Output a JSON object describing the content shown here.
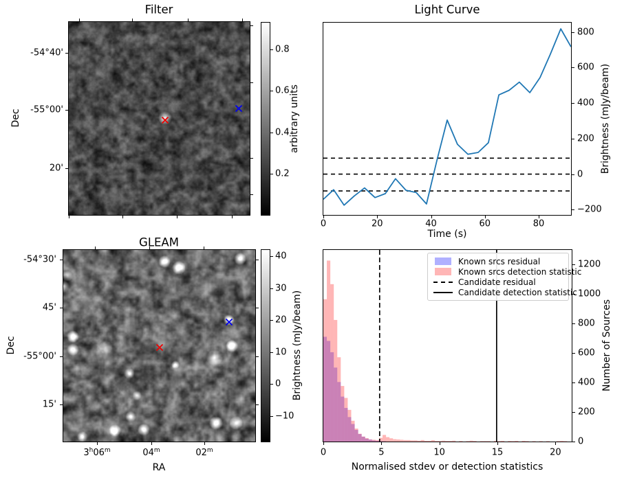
{
  "chart_data": [
    {
      "id": "filter",
      "type": "heatmap",
      "title": "Filter",
      "ylabel": "Dec",
      "ytick_labels": [
        "-54°40'",
        "-55°00'",
        "20'"
      ],
      "colorbar": {
        "label": "arbitrary units",
        "ticks": [
          0.8,
          0.6,
          0.4,
          0.2
        ],
        "vmin": 0,
        "vmax": 0.93,
        "cmap": "grayscale"
      },
      "markers": [
        {
          "id": "candidate-x",
          "symbol": "x",
          "color": "#ee0000",
          "fx": 0.532,
          "fy": 0.498
        },
        {
          "id": "known-source-x",
          "symbol": "x",
          "color": "#0000ee",
          "fx": 0.939,
          "fy": 0.438
        }
      ],
      "image_desc": "dark grayscale noise map with one bright compact spot at the candidate position"
    },
    {
      "id": "light_curve",
      "type": "line",
      "title": "Light Curve",
      "xlabel": "Time (s)",
      "ylabel": "Brightness (mJy/beam)",
      "line_color": "#1f77b4",
      "x": [
        0,
        3.8,
        7.7,
        11.5,
        15.3,
        19.2,
        23,
        26.8,
        30.7,
        34.5,
        38.3,
        42.2,
        46,
        49.8,
        53.7,
        57.5,
        61.3,
        65.2,
        69,
        72.8,
        76.7,
        80.5,
        84.3,
        88.2,
        92
      ],
      "y": [
        -142,
        -88,
        -175,
        -123,
        -78,
        -132,
        -110,
        -26,
        -91,
        -104,
        -168,
        78,
        304,
        168,
        112,
        122,
        177,
        446,
        472,
        518,
        459,
        544,
        675,
        818,
        717
      ],
      "hlines": {
        "values": [
          90,
          0,
          -95
        ],
        "style": "dashed",
        "color": "#000000"
      },
      "xticks": [
        0,
        20,
        40,
        60,
        80
      ],
      "yticks": [
        -200,
        0,
        200,
        400,
        600,
        800
      ],
      "xlim": [
        0,
        92
      ],
      "ylim": [
        -230,
        853
      ],
      "grid": false
    },
    {
      "id": "gleam",
      "type": "heatmap",
      "title": "GLEAM",
      "xlabel": "RA",
      "ylabel": "Dec",
      "xtick_labels": [
        [
          {
            "t": "3"
          },
          {
            "t": "h",
            "sup": true
          },
          {
            "t": "06"
          },
          {
            "t": "m",
            "sup": true
          }
        ],
        [
          {
            "t": "04"
          },
          {
            "t": "m",
            "sup": true
          }
        ],
        [
          {
            "t": "02"
          },
          {
            "t": "m",
            "sup": true
          }
        ]
      ],
      "ytick_labels": [
        "-54°30'",
        "45'",
        "-55°00'",
        "15'"
      ],
      "colorbar": {
        "label": "Brightness (mJy/beam)",
        "ticks": [
          40,
          30,
          20,
          10,
          0,
          -10
        ],
        "vmin": -18,
        "vmax": 42,
        "cmap": "grayscale"
      },
      "markers": [
        {
          "id": "candidate-x",
          "symbol": "x",
          "color": "#ee0000",
          "fx": 0.502,
          "fy": 0.498
        },
        {
          "id": "known-source-x",
          "symbol": "x",
          "color": "#0000ee",
          "fx": 0.864,
          "fy": 0.366
        }
      ],
      "sources": [
        [
          0.05,
          0.452,
          9,
          0.95
        ],
        [
          0.05,
          0.52,
          9,
          0.9
        ],
        [
          0.022,
          0.136,
          8,
          0.6
        ],
        [
          0.527,
          0.061,
          9,
          0.95
        ],
        [
          0.602,
          0.093,
          10,
          1.0
        ],
        [
          0.921,
          0.047,
          9,
          0.95
        ],
        [
          0.864,
          0.366,
          8,
          0.95
        ],
        [
          0.878,
          0.502,
          9,
          1.0
        ],
        [
          0.789,
          0.563,
          12,
          0.55
        ],
        [
          0.344,
          0.645,
          8,
          0.7
        ],
        [
          0.384,
          0.76,
          7,
          0.6
        ],
        [
          0.351,
          0.871,
          8,
          0.65
        ],
        [
          0.419,
          0.939,
          9,
          0.95
        ],
        [
          0.269,
          0.943,
          9,
          0.9
        ],
        [
          0.796,
          0.903,
          10,
          1.0
        ],
        [
          0.9,
          0.903,
          10,
          1.0
        ],
        [
          0.1,
          0.975,
          8,
          0.7
        ],
        [
          0.584,
          0.599,
          6,
          0.8
        ],
        [
          0.222,
          0.509,
          10,
          0.5
        ],
        [
          0.0,
          0.19,
          9,
          0.6
        ]
      ],
      "image_desc": "grayscale sky map with several bright point sources; blue x sits on a bright source"
    },
    {
      "id": "histogram",
      "type": "bar",
      "xlabel": "Normalised stdev or detection statistics",
      "ylabel": "Number of Sources",
      "bin_start": 0,
      "bin_width": 0.3,
      "series": [
        {
          "name": "Known srcs residual",
          "color": "#0000ff",
          "opacity": 0.31,
          "values": [
            711,
            683,
            606,
            502,
            404,
            305,
            228,
            166,
            119,
            79,
            51,
            33,
            20,
            14,
            8,
            5,
            3,
            2
          ]
        },
        {
          "name": "Known srcs detection statistic",
          "color": "#ff2020",
          "opacity": 0.33,
          "values": [
            966,
            1228,
            1068,
            825,
            572,
            377,
            296,
            215,
            141,
            88,
            53,
            34,
            23,
            14,
            12,
            10,
            25,
            45,
            30,
            22,
            16,
            14,
            12,
            10,
            10,
            8,
            8,
            6,
            10,
            5,
            5,
            9,
            4,
            4,
            6,
            4,
            4,
            6,
            0,
            4,
            0,
            3,
            6,
            4,
            0,
            3,
            3,
            3,
            0,
            5,
            3,
            5,
            0,
            4,
            3,
            5,
            0,
            5,
            3,
            0,
            3,
            0,
            3,
            0,
            3,
            0,
            0,
            3,
            5,
            3,
            0
          ]
        }
      ],
      "vlines": [
        {
          "name": "Candidate residual",
          "x": 4.85,
          "style": "dashed",
          "color": "#000000"
        },
        {
          "name": "Candidate detection statistic",
          "x": 14.93,
          "style": "solid",
          "color": "#000000"
        }
      ],
      "legend": [
        {
          "label": "Known srcs residual",
          "swatch": "patch-blue"
        },
        {
          "label": "Known srcs detection statistic",
          "swatch": "patch-pink"
        },
        {
          "label": "Candidate residual",
          "swatch": "line-dashed"
        },
        {
          "label": "Candidate detection statistic",
          "swatch": "line-solid"
        }
      ],
      "xticks": [
        0,
        5,
        10,
        15,
        20
      ],
      "yticks": [
        0,
        200,
        400,
        600,
        800,
        1000,
        1200
      ],
      "xlim": [
        0,
        21.4
      ],
      "ylim": [
        0,
        1300
      ],
      "legend_position": "upper right",
      "grid": false
    }
  ]
}
